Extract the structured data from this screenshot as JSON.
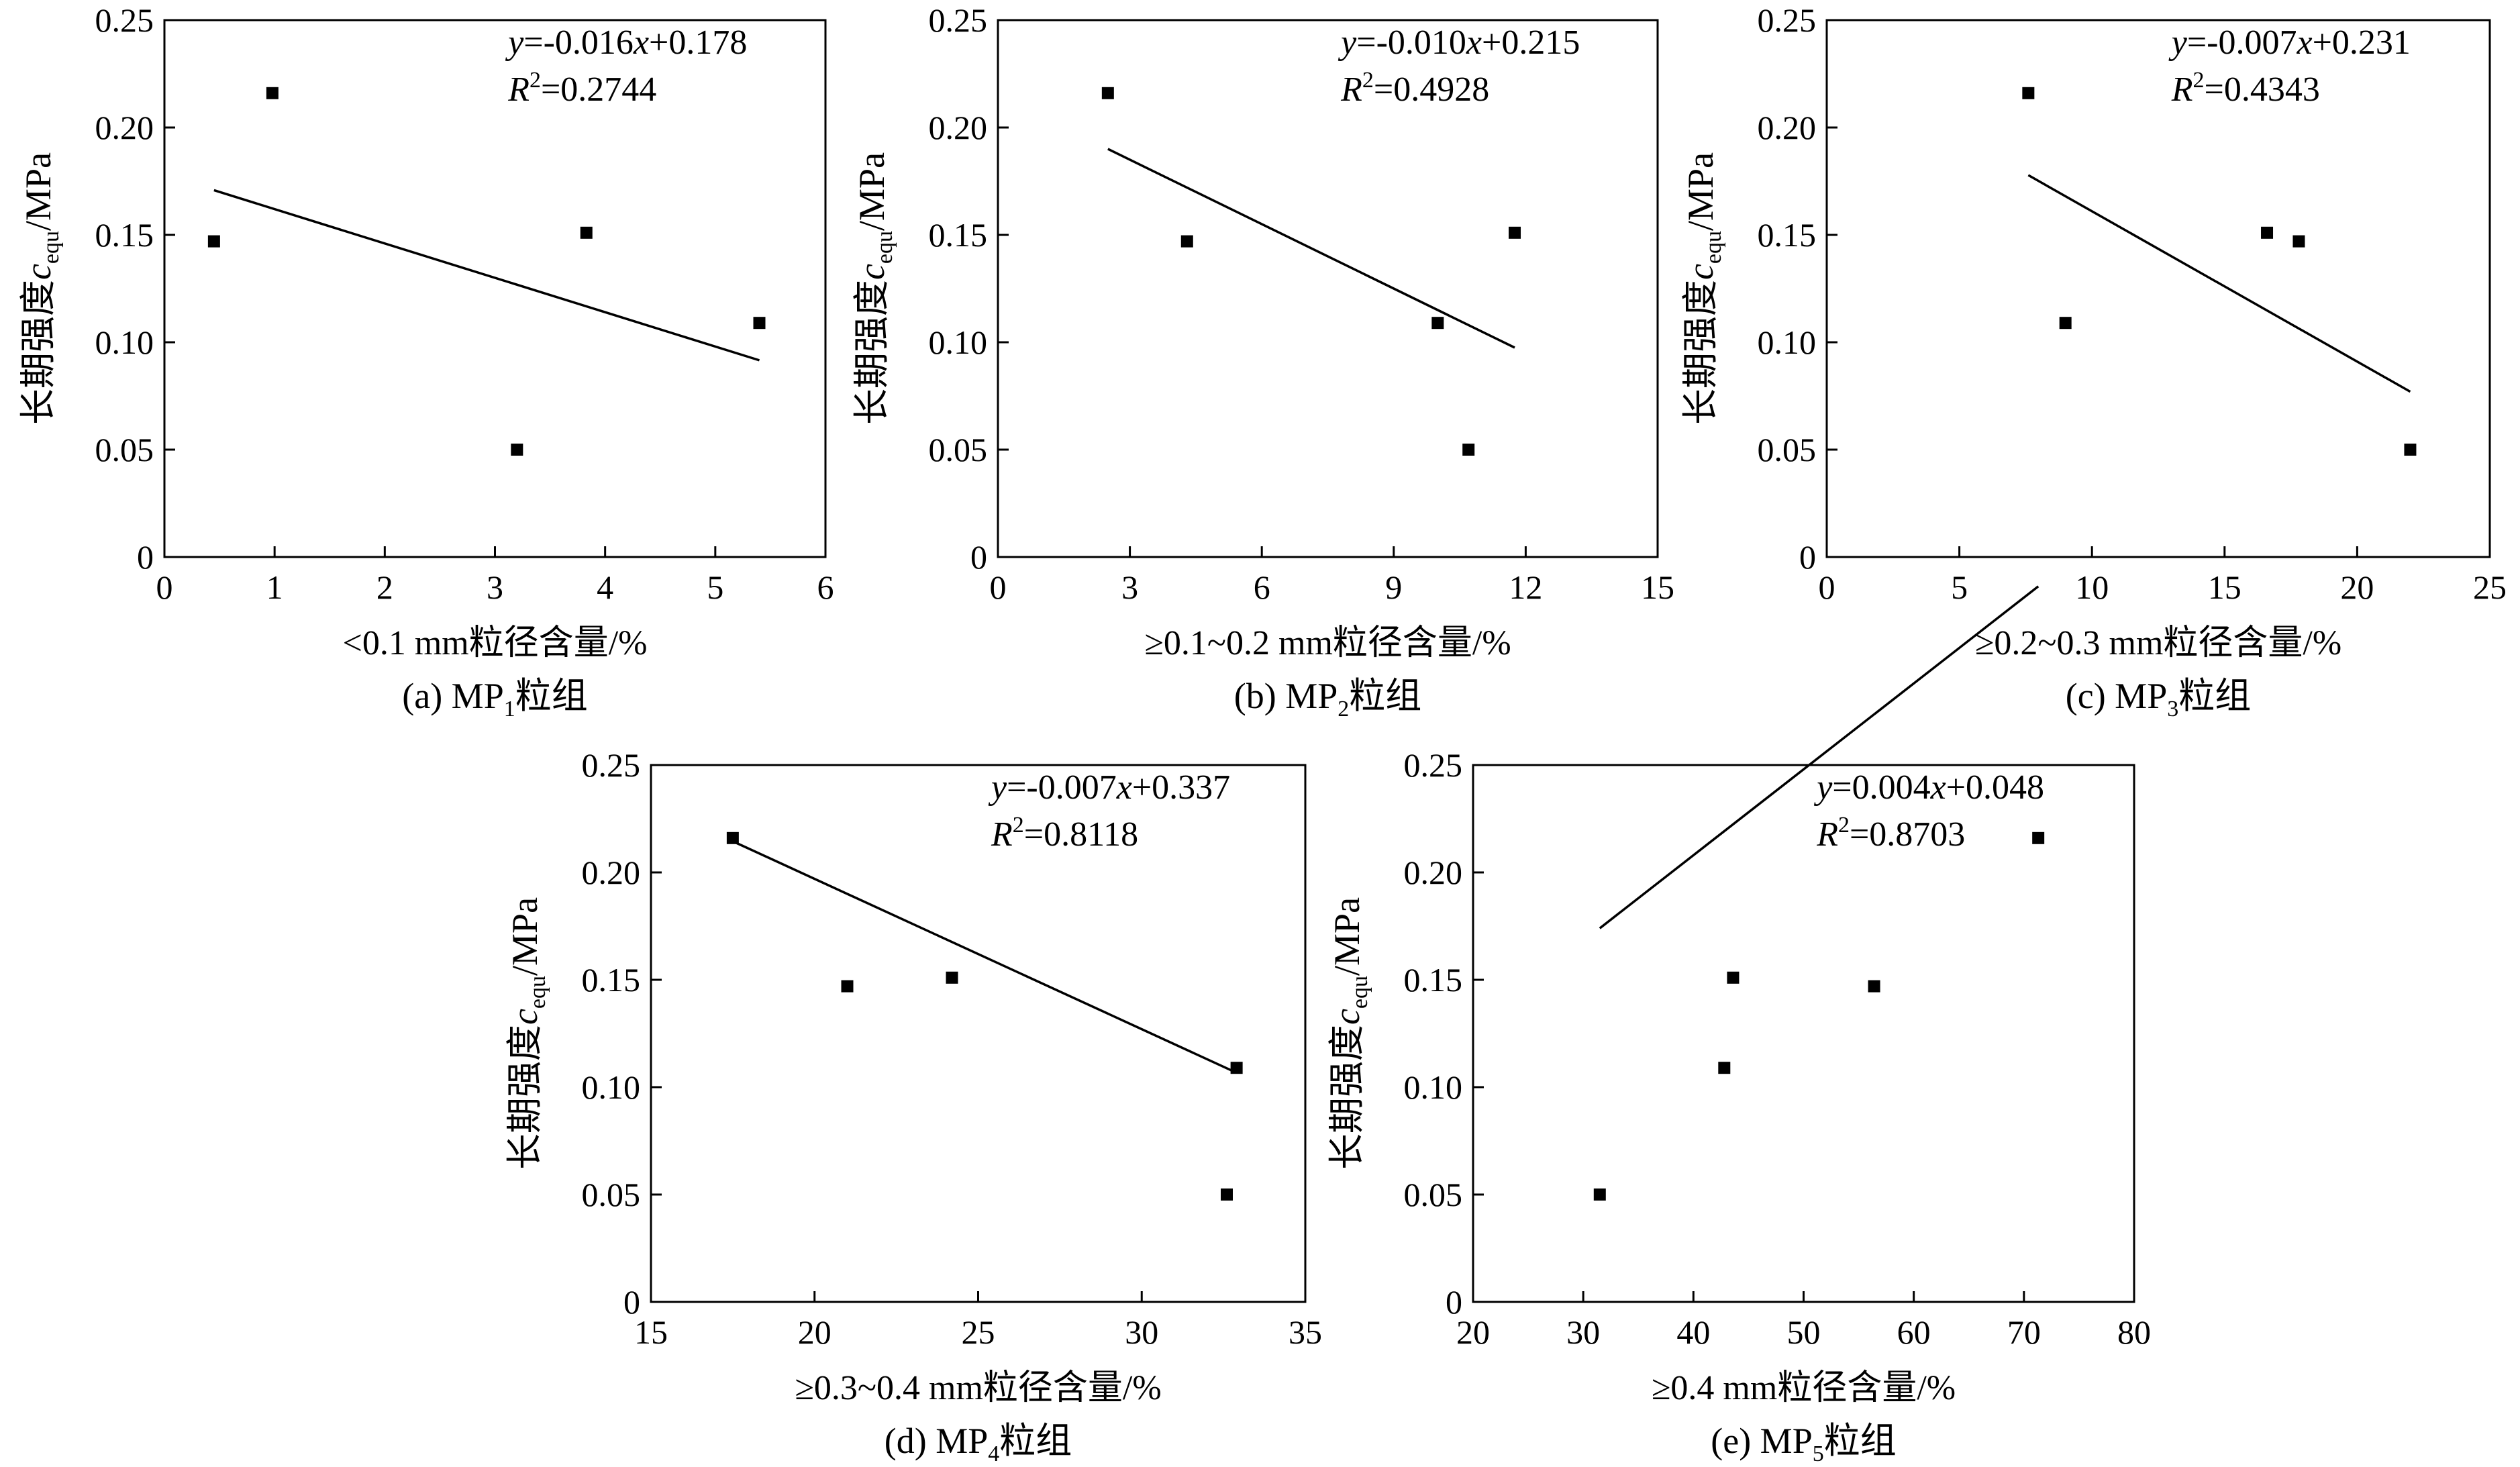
{
  "ylabel": {
    "prefix": "长期强度",
    "var": "c",
    "sub": "equ",
    "unit": "/MPa"
  },
  "chart_data": [
    {
      "type": "scatter",
      "caption": {
        "prefix": "(a) MP",
        "sub": "1",
        "suffix": "粒组"
      },
      "xlabel": "<0.1 mm粒径含量/%",
      "equation": {
        "y": "y",
        "eq": "=-0.016",
        "x": "x",
        "rest": "+0.178"
      },
      "r2": {
        "r": "R",
        "sup": "2",
        "val": "=0.2744"
      },
      "xlim": [
        0,
        6
      ],
      "ylim": [
        0,
        0.25
      ],
      "xticks": [
        "0",
        "1",
        "2",
        "3",
        "4",
        "5",
        "6"
      ],
      "yticks": [
        "0",
        "0.05",
        "0.10",
        "0.15",
        "0.20",
        "0.25"
      ],
      "x": [
        0.45,
        0.98,
        3.2,
        3.83,
        5.4
      ],
      "y": [
        0.147,
        0.216,
        0.05,
        0.151,
        0.109
      ],
      "fit": {
        "slope": -0.016,
        "intercept": 0.178,
        "x_range": [
          0.45,
          5.4
        ]
      }
    },
    {
      "type": "scatter",
      "caption": {
        "prefix": "(b) MP",
        "sub": "2",
        "suffix": "粒组"
      },
      "xlabel": "≥0.1~0.2 mm粒径含量/%",
      "equation": {
        "y": "y",
        "eq": "=-0.010",
        "x": "x",
        "rest": "+0.215"
      },
      "r2": {
        "r": "R",
        "sup": "2",
        "val": "=0.4928"
      },
      "xlim": [
        0,
        15
      ],
      "ylim": [
        0,
        0.25
      ],
      "xticks": [
        "0",
        "3",
        "6",
        "9",
        "12",
        "15"
      ],
      "yticks": [
        "0",
        "0.05",
        "0.10",
        "0.15",
        "0.20",
        "0.25"
      ],
      "x": [
        2.5,
        4.3,
        10.0,
        10.7,
        11.75
      ],
      "y": [
        0.216,
        0.147,
        0.109,
        0.05,
        0.151
      ],
      "fit": {
        "slope": -0.01,
        "intercept": 0.215,
        "x_range": [
          2.5,
          11.75
        ]
      }
    },
    {
      "type": "scatter",
      "caption": {
        "prefix": "(c) MP",
        "sub": "3",
        "suffix": "粒组"
      },
      "xlabel": "≥0.2~0.3 mm粒径含量/%",
      "equation": {
        "y": "y",
        "eq": "=-0.007",
        "x": "x",
        "rest": "+0.231"
      },
      "r2": {
        "r": "R",
        "sup": "2",
        "val": "=0.4343"
      },
      "xlim": [
        0,
        25
      ],
      "ylim": [
        0,
        0.25
      ],
      "xticks": [
        "0",
        "5",
        "10",
        "15",
        "20",
        "25"
      ],
      "yticks": [
        "0",
        "0.05",
        "0.10",
        "0.15",
        "0.20",
        "0.25"
      ],
      "x": [
        7.6,
        9.0,
        16.6,
        17.8,
        22.0
      ],
      "y": [
        0.216,
        0.109,
        0.151,
        0.147,
        0.05
      ],
      "fit": {
        "slope": -0.007,
        "intercept": 0.231,
        "x_range": [
          7.6,
          22.0
        ]
      }
    },
    {
      "type": "scatter",
      "caption": {
        "prefix": "(d) MP",
        "sub": "4",
        "suffix": "粒组"
      },
      "xlabel": "≥0.3~0.4 mm粒径含量/%",
      "equation": {
        "y": "y",
        "eq": "=-0.007",
        "x": "x",
        "rest": "+0.337"
      },
      "r2": {
        "r": "R",
        "sup": "2",
        "val": "=0.8118"
      },
      "xlim": [
        15,
        35
      ],
      "ylim": [
        0,
        0.25
      ],
      "xticks": [
        "15",
        "20",
        "25",
        "30",
        "35"
      ],
      "yticks": [
        "0",
        "0.05",
        "0.10",
        "0.15",
        "0.20",
        "0.25"
      ],
      "x": [
        17.5,
        21.0,
        24.2,
        32.6,
        32.9
      ],
      "y": [
        0.216,
        0.147,
        0.151,
        0.05,
        0.109
      ],
      "fit": {
        "slope": -0.007,
        "intercept": 0.337,
        "x_range": [
          17.5,
          32.9
        ]
      }
    },
    {
      "type": "scatter",
      "caption": {
        "prefix": "(e) MP",
        "sub": "5",
        "suffix": "粒组"
      },
      "xlabel": "≥0.4 mm粒径含量/%",
      "equation": {
        "y": "y",
        "eq": "=0.004",
        "x": "x",
        "rest": "+0.048"
      },
      "r2": {
        "r": "R",
        "sup": "2",
        "val": "=0.8703"
      },
      "xlim": [
        20,
        80
      ],
      "ylim": [
        0,
        0.25
      ],
      "xticks": [
        "20",
        "30",
        "40",
        "50",
        "60",
        "70",
        "80"
      ],
      "yticks": [
        "0",
        "0.05",
        "0.10",
        "0.15",
        "0.20",
        "0.25"
      ],
      "x": [
        31.5,
        42.8,
        43.6,
        56.4,
        71.3
      ],
      "y": [
        0.05,
        0.109,
        0.151,
        0.147,
        0.216
      ],
      "fit": {
        "slope": 0.004,
        "intercept": 0.048,
        "x_range": [
          31.5,
          71.3
        ]
      }
    }
  ]
}
